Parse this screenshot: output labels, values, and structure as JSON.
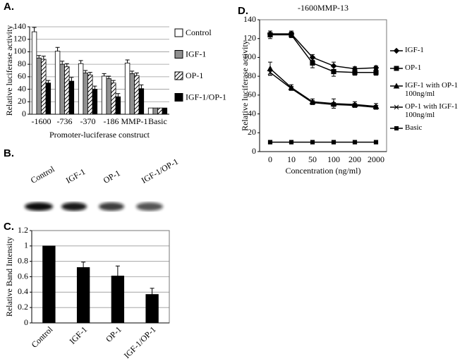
{
  "chart_data": [
    {
      "type": "bar",
      "label": "A.",
      "y_label": "Relative luciferase activity",
      "x_label": "Promoter-luciferase construct",
      "categories": [
        "-1600",
        "-736",
        "-370",
        "-186",
        "MMP-1",
        "Basic"
      ],
      "series": [
        {
          "name": "Control",
          "color": "#ffffff",
          "values": [
            132,
            101,
            81,
            61,
            82,
            10
          ],
          "errors": [
            7,
            6,
            5,
            4,
            5,
            0
          ]
        },
        {
          "name": "IGF-1",
          "color": "#909090",
          "values": [
            90,
            80,
            66,
            57,
            65,
            10
          ],
          "errors": [
            4,
            5,
            4,
            4,
            4,
            0
          ]
        },
        {
          "name": "OP-1",
          "color": "#ffffff",
          "hatch": true,
          "values": [
            88,
            76,
            63,
            50,
            62,
            10
          ],
          "errors": [
            5,
            5,
            4,
            4,
            4,
            0
          ]
        },
        {
          "name": "IGF-1/OP-1",
          "color": "#000000",
          "values": [
            50,
            53,
            40,
            28,
            41,
            10
          ],
          "errors": [
            4,
            6,
            5,
            5,
            6,
            0
          ]
        }
      ],
      "ylim": [
        0,
        140
      ],
      "yticks": [
        0,
        20,
        40,
        60,
        80,
        100,
        120,
        140
      ],
      "grid": true
    },
    {
      "type": "bar",
      "label": "C.",
      "y_label": "Relative Band Intensity",
      "categories": [
        "Control",
        "IGF-1",
        "OP-1",
        "IGF-1/OP-1"
      ],
      "series": [
        {
          "color": "#000000",
          "values": [
            1,
            0.72,
            0.61,
            0.37
          ],
          "errors": [
            0,
            0.07,
            0.13,
            0.08
          ]
        }
      ],
      "ylim": [
        0,
        1.2
      ],
      "yticks": [
        0,
        0.2,
        0.4,
        0.6,
        0.8,
        1,
        1.2
      ],
      "grid": true
    },
    {
      "type": "line",
      "label": "D.",
      "title": "-1600MMP-13",
      "y_label": "Relative luciferase activity",
      "x_label": "Concentration (ng/ml)",
      "categories": [
        "0",
        "10",
        "50",
        "100",
        "200",
        "2000"
      ],
      "series": [
        {
          "name": "IGF-1",
          "color": "#000000",
          "values": [
            125,
            125,
            100,
            91,
            88,
            89
          ],
          "errors": [
            3,
            3,
            3,
            4,
            2,
            2
          ]
        },
        {
          "name": "OP-1",
          "color": "#000000",
          "values": [
            124,
            124,
            94,
            85,
            84,
            84
          ],
          "errors": [
            4,
            3,
            5,
            5,
            3,
            3
          ]
        },
        {
          "name": "IGF-1 with OP-1 100ng/ml",
          "color": "#000000",
          "values": [
            88,
            68,
            53,
            51,
            50,
            48
          ],
          "errors": [
            7,
            3,
            3,
            5,
            3,
            3
          ]
        },
        {
          "name": "OP-1 with IGF-1 100ng/ml",
          "color": "#000000",
          "values": [
            84,
            67,
            52,
            50,
            49,
            47
          ],
          "errors": [
            3,
            2,
            2,
            2,
            2,
            2
          ]
        },
        {
          "name": "Basic",
          "color": "#000000",
          "values": [
            10,
            10,
            10,
            10,
            10,
            10
          ],
          "errors": [
            0,
            0,
            0,
            0,
            0,
            0
          ]
        }
      ],
      "ylim": [
        0,
        140
      ],
      "yticks": [
        0,
        20,
        40,
        60,
        80,
        100,
        120,
        140
      ],
      "grid": false
    }
  ],
  "blot": {
    "label": "B.",
    "lanes": [
      "Control",
      "IGF-1",
      "OP-1",
      "IGF-1/OP-1"
    ]
  }
}
